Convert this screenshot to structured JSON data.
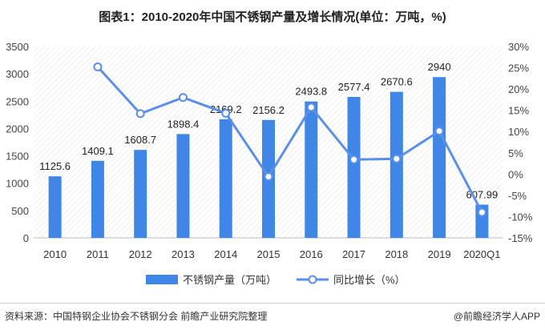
{
  "title": "图表1：2010-2020年中国不锈钢产量及增长情况(单位：万吨，%)",
  "source": "资料来源：中国特钢企业协会不锈钢分会 前瞻产业研究院整理",
  "brand": "@前瞻经济学人APP",
  "chart_data": {
    "type": "bar+line",
    "categories": [
      "2010",
      "2011",
      "2012",
      "2013",
      "2014",
      "2015",
      "2016",
      "2017",
      "2018",
      "2019",
      "2020Q1"
    ],
    "series": [
      {
        "name": "不锈钢产量（万吨）",
        "type": "bar",
        "axis": "left",
        "color": "#3f86e6",
        "values": [
          1125.6,
          1409.1,
          1608.7,
          1898.4,
          2169.2,
          2156.2,
          2493.8,
          2577.4,
          2670.6,
          2940,
          607.99
        ],
        "labels": [
          "1125.6",
          "1409.1",
          "1608.7",
          "1898.4",
          "2169.2",
          "2156.2",
          "2493.8",
          "2577.4",
          "2670.6",
          "2940",
          "607.99"
        ]
      },
      {
        "name": "同比增长（%）",
        "type": "line",
        "axis": "right",
        "color": "#5b8fe8",
        "values": [
          null,
          25.2,
          14.2,
          18.0,
          14.3,
          -0.6,
          15.7,
          3.4,
          3.6,
          10.1,
          -9.0
        ]
      }
    ],
    "left_axis": {
      "min": 0,
      "max": 3500,
      "step": 500,
      "ticks": [
        "0",
        "500",
        "1000",
        "1500",
        "2000",
        "2500",
        "3000",
        "3500"
      ]
    },
    "right_axis": {
      "min": -15,
      "max": 30,
      "step": 5,
      "ticks": [
        "-15%",
        "-10%",
        "-5%",
        "0%",
        "5%",
        "10%",
        "15%",
        "20%",
        "25%",
        "30%"
      ]
    },
    "legend_position": "bottom",
    "grid": false
  }
}
